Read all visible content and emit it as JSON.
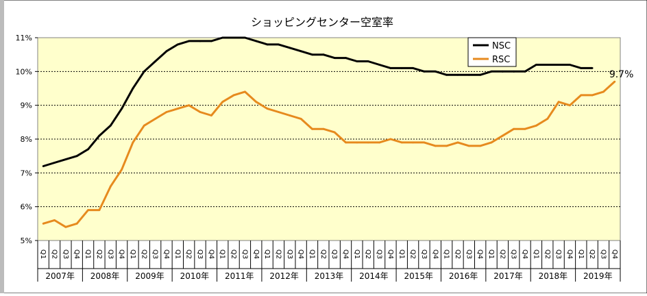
{
  "chart_data": {
    "type": "line",
    "title": "ショッピングセンター空室率",
    "xlabel": "",
    "ylabel": "",
    "ylim": [
      5,
      11
    ],
    "y_ticks": [
      "5%",
      "6%",
      "7%",
      "8%",
      "9%",
      "10%",
      "11%"
    ],
    "quarters": [
      "Q1",
      "Q2",
      "Q3",
      "Q4"
    ],
    "years": [
      "2007年",
      "2008年",
      "2009年",
      "2010年",
      "2011年",
      "2012年",
      "2013年",
      "2014年",
      "2015年",
      "2016年",
      "2017年",
      "2018年",
      "2019年"
    ],
    "legend": {
      "position": "top-right",
      "entries": [
        "NSC",
        "RSC"
      ]
    },
    "series": [
      {
        "name": "NSC",
        "color": "#000000",
        "values": [
          7.2,
          7.3,
          7.4,
          7.5,
          7.7,
          8.1,
          8.4,
          8.9,
          9.5,
          10.0,
          10.3,
          10.6,
          10.8,
          10.9,
          10.9,
          10.9,
          11.0,
          11.0,
          11.0,
          10.9,
          10.8,
          10.8,
          10.7,
          10.6,
          10.5,
          10.5,
          10.4,
          10.4,
          10.3,
          10.3,
          10.2,
          10.1,
          10.1,
          10.1,
          10.0,
          10.0,
          9.9,
          9.9,
          9.9,
          9.9,
          10.0,
          10.0,
          10.0,
          10.0,
          10.2,
          10.2,
          10.2,
          10.2,
          10.1,
          10.1
        ]
      },
      {
        "name": "RSC",
        "color": "#e68a1e",
        "values": [
          5.5,
          5.6,
          5.4,
          5.5,
          5.9,
          5.9,
          6.6,
          7.1,
          7.9,
          8.4,
          8.6,
          8.8,
          8.9,
          9.0,
          8.8,
          8.7,
          9.1,
          9.3,
          9.4,
          9.1,
          8.9,
          8.8,
          8.7,
          8.6,
          8.3,
          8.3,
          8.2,
          7.9,
          7.9,
          7.9,
          7.9,
          8.0,
          7.9,
          7.9,
          7.9,
          7.8,
          7.8,
          7.9,
          7.8,
          7.8,
          7.9,
          8.1,
          8.3,
          8.3,
          8.4,
          8.6,
          9.1,
          9.0,
          9.3,
          9.3,
          9.4,
          9.7
        ]
      }
    ],
    "annotations": [
      {
        "text": "9.7%",
        "series": "RSC",
        "index": 51
      }
    ]
  }
}
